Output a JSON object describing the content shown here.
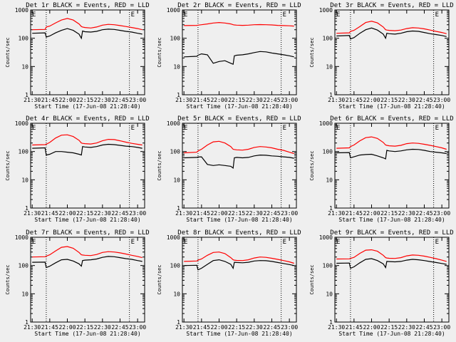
{
  "figure": {
    "x_axis_label": "Start Time (17-Jun-08 21:28:40)",
    "y_axis_label": "Counts/sec",
    "marker_label": "E",
    "x_ticks": [
      "21:30",
      "21:45",
      "22:00",
      "22:15",
      "22:30",
      "22:45",
      "23:00"
    ],
    "y_ticks": [
      "1",
      "10",
      "100",
      "1000"
    ]
  },
  "colors": {
    "events": "#000000",
    "lld": "#ff0000",
    "background": "#efefef"
  },
  "chart_data": [
    {
      "type": "line",
      "title": "Det 1r BLACK = Events, RED = LLD",
      "xlabel": "Start Time (17-Jun-08 21:28:40)",
      "ylabel": "Counts/sec",
      "x": [
        "21:30",
        "21:41",
        "21:42",
        "21:45",
        "21:50",
        "21:55",
        "22:00",
        "22:05",
        "22:10",
        "22:12",
        "22:13",
        "22:15",
        "22:20",
        "22:25",
        "22:30",
        "22:35",
        "22:40",
        "22:45",
        "22:50",
        "22:55",
        "23:00",
        "23:04"
      ],
      "xlim": [
        "21:28:40",
        "23:06"
      ],
      "ylim": [
        1,
        1000
      ],
      "yscale": "log",
      "vlines": [
        "21:42",
        "22:53"
      ],
      "series": [
        {
          "name": "LLD",
          "color": "red",
          "values": [
            200,
            205,
            250,
            270,
            350,
            440,
            500,
            440,
            320,
            260,
            250,
            240,
            230,
            250,
            290,
            310,
            300,
            280,
            260,
            240,
            220,
            200
          ]
        },
        {
          "name": "Events",
          "color": "black",
          "values": [
            150,
            155,
            110,
            120,
            155,
            190,
            220,
            190,
            140,
            100,
            180,
            170,
            165,
            175,
            200,
            210,
            205,
            190,
            175,
            165,
            150,
            140
          ]
        }
      ]
    },
    {
      "type": "line",
      "title": "Det 2r BLACK = Events, RED = LLD",
      "xlabel": "Start Time (17-Jun-08 21:28:40)",
      "ylabel": "Counts/sec",
      "x": [
        "21:30",
        "21:41",
        "21:42",
        "21:45",
        "21:50",
        "21:55",
        "22:00",
        "22:05",
        "22:10",
        "22:12",
        "22:13",
        "22:15",
        "22:20",
        "22:25",
        "22:30",
        "22:35",
        "22:40",
        "22:45",
        "22:50",
        "22:55",
        "23:00",
        "23:04"
      ],
      "xlim": [
        "21:28:40",
        "23:06"
      ],
      "ylim": [
        1,
        1000
      ],
      "yscale": "log",
      "vlines": [
        "21:42",
        "22:53"
      ],
      "series": [
        {
          "name": "LLD",
          "color": "red",
          "values": [
            280,
            285,
            290,
            300,
            320,
            345,
            360,
            345,
            320,
            300,
            295,
            290,
            285,
            290,
            300,
            305,
            300,
            295,
            285,
            280,
            275,
            270
          ]
        },
        {
          "name": "Events",
          "color": "black",
          "values": [
            22,
            23,
            25,
            28,
            26,
            13,
            15,
            16,
            13,
            12,
            24,
            25,
            26,
            28,
            31,
            34,
            33,
            30,
            28,
            26,
            24,
            22
          ]
        }
      ]
    },
    {
      "type": "line",
      "title": "Det 3r BLACK = Events, RED = LLD",
      "xlabel": "Start Time (17-Jun-08 21:28:40)",
      "ylabel": "Counts/sec",
      "x": [
        "21:30",
        "21:41",
        "21:42",
        "21:45",
        "21:50",
        "21:55",
        "22:00",
        "22:05",
        "22:10",
        "22:12",
        "22:13",
        "22:15",
        "22:20",
        "22:25",
        "22:30",
        "22:35",
        "22:40",
        "22:45",
        "22:50",
        "22:55",
        "23:00",
        "23:04"
      ],
      "xlim": [
        "21:28:40",
        "23:06"
      ],
      "ylim": [
        1,
        1000
      ],
      "yscale": "log",
      "vlines": [
        "21:42",
        "22:53"
      ],
      "series": [
        {
          "name": "LLD",
          "color": "red",
          "values": [
            150,
            155,
            175,
            190,
            260,
            360,
            400,
            350,
            250,
            200,
            195,
            190,
            185,
            195,
            220,
            235,
            230,
            215,
            195,
            175,
            160,
            145
          ]
        },
        {
          "name": "Events",
          "color": "black",
          "values": [
            120,
            125,
            95,
            105,
            150,
            200,
            230,
            195,
            140,
            100,
            150,
            145,
            140,
            150,
            170,
            180,
            175,
            160,
            145,
            135,
            125,
            115
          ]
        }
      ]
    },
    {
      "type": "line",
      "title": "Det 4r BLACK = Events, RED = LLD",
      "xlabel": "Start Time (17-Jun-08 21:28:40)",
      "ylabel": "Counts/sec",
      "x": [
        "21:30",
        "21:41",
        "21:42",
        "21:45",
        "21:50",
        "21:55",
        "22:00",
        "22:05",
        "22:10",
        "22:12",
        "22:13",
        "22:15",
        "22:20",
        "22:25",
        "22:30",
        "22:35",
        "22:40",
        "22:45",
        "22:50",
        "22:55",
        "23:00",
        "23:04"
      ],
      "xlim": [
        "21:28:40",
        "23:06"
      ],
      "ylim": [
        1,
        1000
      ],
      "yscale": "log",
      "vlines": [
        "21:42",
        "22:53"
      ],
      "series": [
        {
          "name": "LLD",
          "color": "red",
          "values": [
            170,
            175,
            180,
            210,
            300,
            380,
            390,
            340,
            250,
            200,
            195,
            190,
            185,
            200,
            240,
            270,
            265,
            240,
            215,
            195,
            180,
            170
          ]
        },
        {
          "name": "Events",
          "color": "black",
          "values": [
            130,
            135,
            75,
            80,
            100,
            100,
            95,
            90,
            80,
            75,
            150,
            145,
            140,
            150,
            170,
            180,
            175,
            165,
            155,
            150,
            140,
            130
          ]
        }
      ]
    },
    {
      "type": "line",
      "title": "Det 5r BLACK = Events, RED = LLD",
      "xlabel": "Start Time (17-Jun-08 21:28:40)",
      "ylabel": "Counts/sec",
      "x": [
        "21:30",
        "21:41",
        "21:42",
        "21:45",
        "21:50",
        "21:55",
        "22:00",
        "22:05",
        "22:10",
        "22:12",
        "22:13",
        "22:15",
        "22:20",
        "22:25",
        "22:30",
        "22:35",
        "22:40",
        "22:45",
        "22:50",
        "22:55",
        "23:00",
        "23:04"
      ],
      "xlim": [
        "21:28:40",
        "23:06"
      ],
      "ylim": [
        1,
        1000
      ],
      "yscale": "log",
      "vlines": [
        "21:42",
        "22:53"
      ],
      "series": [
        {
          "name": "LLD",
          "color": "red",
          "values": [
            90,
            95,
            105,
            120,
            170,
            220,
            230,
            200,
            150,
            120,
            118,
            115,
            112,
            120,
            140,
            150,
            145,
            135,
            120,
            110,
            95,
            85
          ]
        },
        {
          "name": "Events",
          "color": "black",
          "values": [
            60,
            62,
            64,
            65,
            35,
            32,
            34,
            32,
            30,
            26,
            60,
            62,
            60,
            62,
            70,
            75,
            74,
            70,
            68,
            65,
            62,
            58
          ]
        }
      ]
    },
    {
      "type": "line",
      "title": "Det 6r BLACK = Events, RED = LLD",
      "xlabel": "Start Time (17-Jun-08 21:28:40)",
      "ylabel": "Counts/sec",
      "x": [
        "21:30",
        "21:41",
        "21:42",
        "21:45",
        "21:50",
        "21:55",
        "22:00",
        "22:05",
        "22:10",
        "22:12",
        "22:13",
        "22:15",
        "22:20",
        "22:25",
        "22:30",
        "22:35",
        "22:40",
        "22:45",
        "22:50",
        "22:55",
        "23:00",
        "23:04"
      ],
      "xlim": [
        "21:28:40",
        "23:06"
      ],
      "ylim": [
        1,
        1000
      ],
      "yscale": "log",
      "vlines": [
        "21:42",
        "22:53"
      ],
      "series": [
        {
          "name": "LLD",
          "color": "red",
          "values": [
            130,
            135,
            150,
            170,
            240,
            310,
            330,
            290,
            210,
            170,
            165,
            160,
            155,
            165,
            190,
            200,
            195,
            180,
            165,
            150,
            135,
            120
          ]
        },
        {
          "name": "Events",
          "color": "black",
          "values": [
            90,
            92,
            60,
            65,
            75,
            78,
            80,
            70,
            60,
            55,
            110,
            105,
            100,
            105,
            115,
            120,
            118,
            110,
            100,
            95,
            90,
            85
          ]
        }
      ]
    },
    {
      "type": "line",
      "title": "Det 7r BLACK = Events, RED = LLD",
      "xlabel": "Start Time (17-Jun-08 21:28:40)",
      "ylabel": "Counts/sec",
      "x": [
        "21:30",
        "21:41",
        "21:42",
        "21:45",
        "21:50",
        "21:55",
        "22:00",
        "22:05",
        "22:10",
        "22:12",
        "22:13",
        "22:15",
        "22:20",
        "22:25",
        "22:30",
        "22:35",
        "22:40",
        "22:45",
        "22:50",
        "22:55",
        "23:00",
        "23:04"
      ],
      "xlim": [
        "21:28:40",
        "23:06"
      ],
      "ylim": [
        1,
        1000
      ],
      "yscale": "log",
      "vlines": [
        "21:42",
        "22:53"
      ],
      "series": [
        {
          "name": "LLD",
          "color": "red",
          "values": [
            200,
            205,
            215,
            240,
            330,
            440,
            470,
            410,
            290,
            240,
            235,
            230,
            225,
            245,
            290,
            310,
            300,
            280,
            255,
            230,
            210,
            190
          ]
        },
        {
          "name": "Events",
          "color": "black",
          "values": [
            130,
            132,
            85,
            95,
            125,
            160,
            165,
            145,
            115,
            95,
            150,
            155,
            160,
            170,
            195,
            210,
            205,
            190,
            175,
            165,
            150,
            140
          ]
        }
      ]
    },
    {
      "type": "line",
      "title": "Det 8r BLACK = Events, RED = LLD",
      "xlabel": "Start Time (17-Jun-08 21:28:40)",
      "ylabel": "Counts/sec",
      "x": [
        "21:30",
        "21:41",
        "21:42",
        "21:45",
        "21:50",
        "21:55",
        "22:00",
        "22:05",
        "22:10",
        "22:12",
        "22:13",
        "22:15",
        "22:20",
        "22:25",
        "22:30",
        "22:35",
        "22:40",
        "22:45",
        "22:50",
        "22:55",
        "23:00",
        "23:04"
      ],
      "xlim": [
        "21:28:40",
        "23:06"
      ],
      "ylim": [
        1,
        1000
      ],
      "yscale": "log",
      "vlines": [
        "21:42",
        "22:53"
      ],
      "series": [
        {
          "name": "LLD",
          "color": "red",
          "values": [
            140,
            145,
            155,
            170,
            230,
            290,
            300,
            265,
            190,
            160,
            155,
            152,
            150,
            160,
            185,
            200,
            195,
            180,
            165,
            150,
            135,
            120
          ]
        },
        {
          "name": "Events",
          "color": "black",
          "values": [
            100,
            102,
            70,
            80,
            110,
            150,
            160,
            140,
            110,
            80,
            130,
            128,
            125,
            130,
            145,
            150,
            148,
            140,
            128,
            118,
            108,
            100
          ]
        }
      ]
    },
    {
      "type": "line",
      "title": "Det 9r BLACK = Events, RED = LLD",
      "xlabel": "Start Time (17-Jun-08 21:28:40)",
      "ylabel": "Counts/sec",
      "x": [
        "21:30",
        "21:41",
        "21:42",
        "21:45",
        "21:50",
        "21:55",
        "22:00",
        "22:05",
        "22:10",
        "22:12",
        "22:13",
        "22:15",
        "22:20",
        "22:25",
        "22:30",
        "22:35",
        "22:40",
        "22:45",
        "22:50",
        "22:55",
        "23:00",
        "23:04"
      ],
      "xlim": [
        "21:28:40",
        "23:06"
      ],
      "ylim": [
        1,
        1000
      ],
      "yscale": "log",
      "vlines": [
        "21:42",
        "22:53"
      ],
      "series": [
        {
          "name": "LLD",
          "color": "red",
          "values": [
            170,
            172,
            178,
            195,
            270,
            350,
            360,
            320,
            230,
            190,
            185,
            180,
            178,
            190,
            220,
            235,
            230,
            215,
            195,
            175,
            155,
            140
          ]
        },
        {
          "name": "Events",
          "color": "black",
          "values": [
            120,
            122,
            80,
            90,
            125,
            165,
            175,
            150,
            115,
            85,
            140,
            138,
            135,
            140,
            155,
            165,
            160,
            150,
            138,
            128,
            118,
            110
          ]
        }
      ]
    }
  ]
}
